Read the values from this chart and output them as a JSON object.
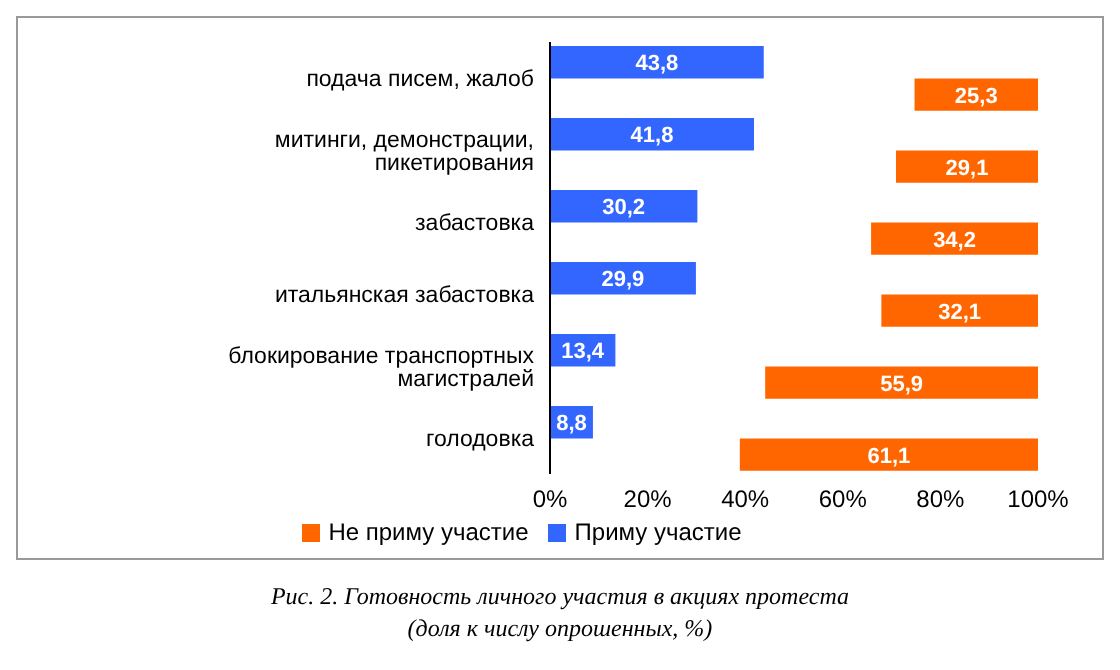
{
  "chart_data": {
    "type": "bar",
    "orientation": "horizontal",
    "title": "Рис. 2. Готовность личного участия в акциях протеста",
    "subtitle": "(доля к числу опрошенных, %)",
    "categories": [
      "подача писем, жалоб",
      "митинги, демонстрации, пикетирования",
      "забастовка",
      "итальянская забастовка",
      "блокирование транспортных магистралей",
      "голодовка"
    ],
    "series": [
      {
        "name": "Приму участие",
        "color": "#3366ff",
        "values": [
          43.8,
          41.8,
          30.2,
          29.9,
          13.4,
          8.8
        ],
        "value_labels": [
          "43,8",
          "41,8",
          "30,2",
          "29,9",
          "13,4",
          "8,8"
        ]
      },
      {
        "name": "Не приму участие",
        "color": "#ff6600",
        "values": [
          25.3,
          29.1,
          34.2,
          32.1,
          55.9,
          61.1
        ],
        "base": [
          74.7,
          70.9,
          65.8,
          67.9,
          44.1,
          38.9
        ],
        "value_labels": [
          "25,3",
          "29,1",
          "34,2",
          "32,1",
          "55,9",
          "61,1"
        ]
      }
    ],
    "xlim": [
      0,
      100
    ],
    "xticks": [
      {
        "value": 0,
        "label": "0%"
      },
      {
        "value": 20,
        "label": "20%"
      },
      {
        "value": 40,
        "label": "40%"
      },
      {
        "value": 60,
        "label": "60%"
      },
      {
        "value": 80,
        "label": "80%"
      },
      {
        "value": 100,
        "label": "100%"
      }
    ],
    "legend": "bottom"
  }
}
